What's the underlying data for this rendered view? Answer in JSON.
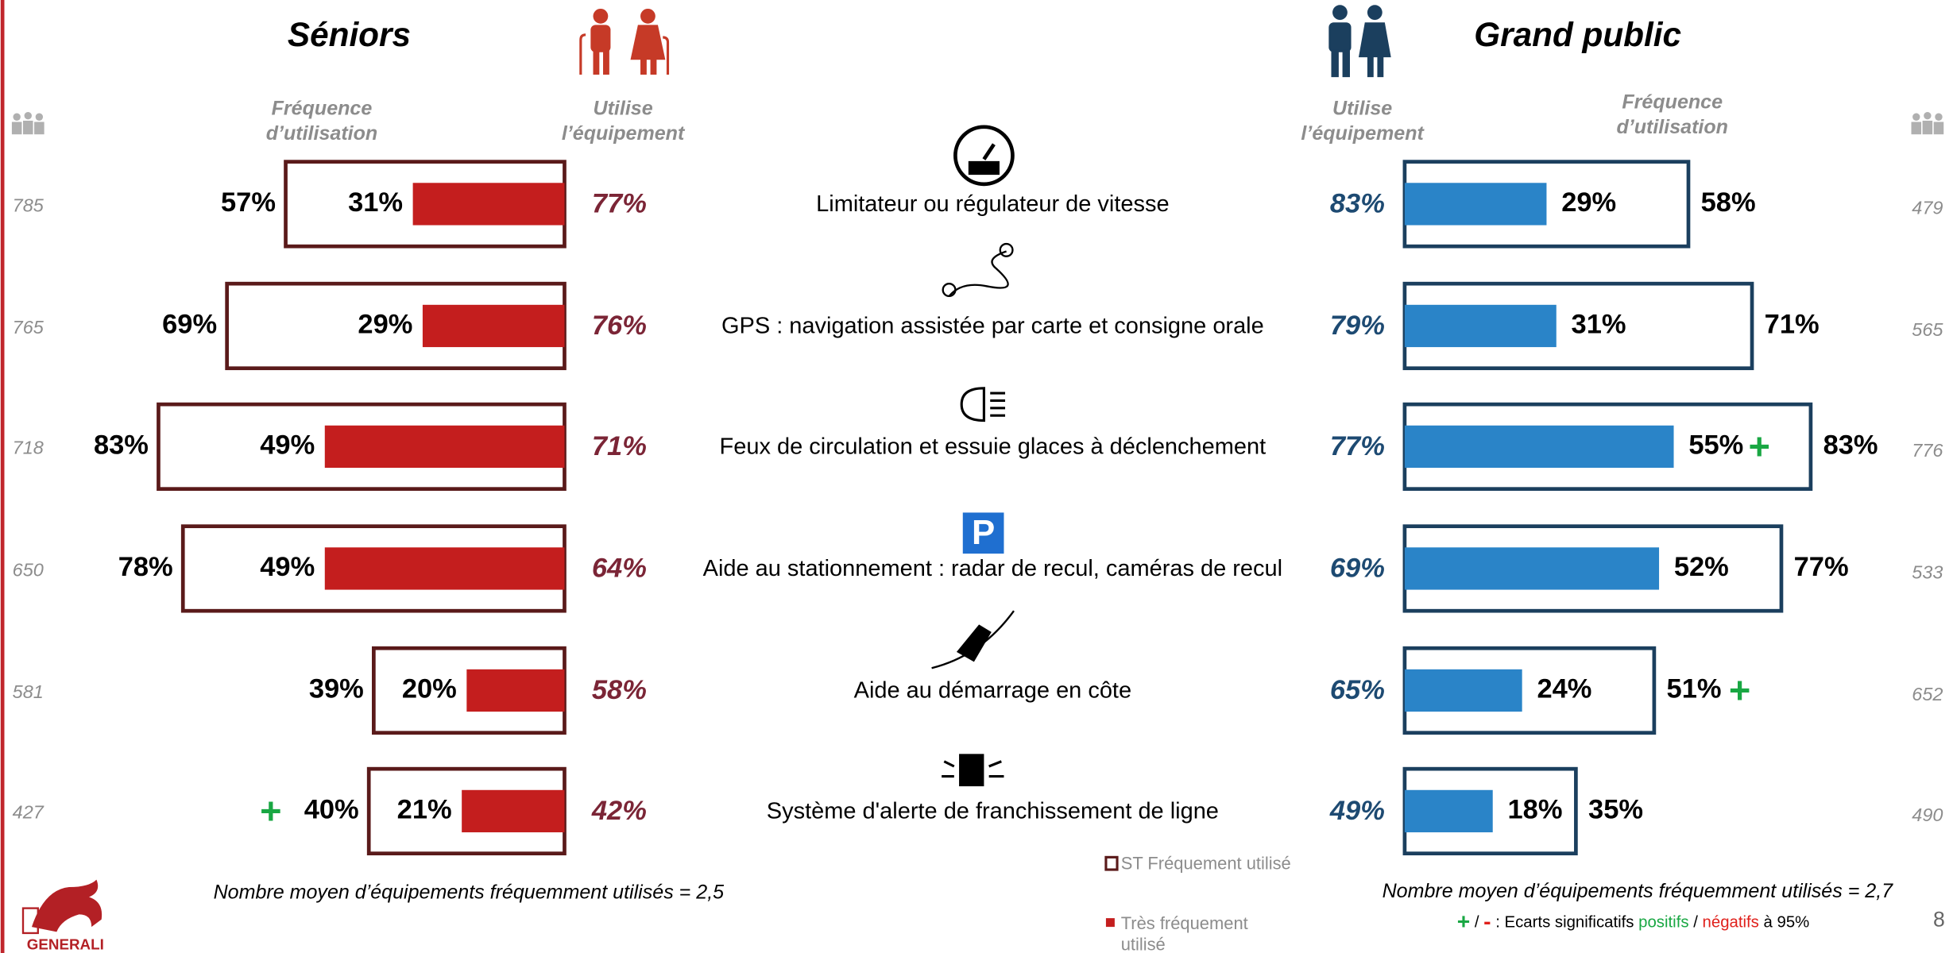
{
  "items": [
    "Limitateur ou régulateur de vitesse",
    "GPS : navigation assistée par carte et consigne orale",
    "Feux de circulation et essuie glaces à  déclenchement",
    "Aide au stationnement : radar de recul, caméras de recul",
    "Aide au démarrage en côte",
    "Système d'alerte de franchissement de ligne"
  ],
  "left": {
    "title": "Séniors",
    "col_freq": [
      "Fréquence",
      "d’utilisation"
    ],
    "col_use": [
      "Utilise",
      "l’équipement"
    ],
    "bases": [
      785,
      765,
      718,
      650,
      581,
      427
    ],
    "st": [
      57,
      69,
      83,
      78,
      39,
      40
    ],
    "st_labels": [
      "57%",
      "69%",
      "83%",
      "78%",
      "39%",
      "40%"
    ],
    "st_sig": [
      null,
      null,
      null,
      null,
      null,
      "+"
    ],
    "tres": [
      31,
      29,
      49,
      49,
      20,
      21
    ],
    "tres_labels": [
      "31%",
      "29%",
      "49%",
      "49%",
      "20%",
      "21%"
    ],
    "tres_sig": [
      null,
      null,
      null,
      null,
      null,
      null
    ],
    "use": [
      77,
      76,
      71,
      64,
      58,
      42
    ],
    "use_labels": [
      "77%",
      "76%",
      "71%",
      "64%",
      "58%",
      "42%"
    ],
    "footnote": "Nombre moyen d’équipements fréquemment utilisés = 2,5"
  },
  "right": {
    "title": "Grand public",
    "col_freq": [
      "Fréquence",
      "d’utilisation"
    ],
    "col_use": [
      "Utilise",
      "l’équipement"
    ],
    "bases": [
      479,
      565,
      776,
      533,
      652,
      490
    ],
    "st": [
      58,
      71,
      83,
      77,
      51,
      35
    ],
    "st_labels": [
      "58%",
      "71%",
      "83%",
      "77%",
      "51%",
      "35%"
    ],
    "st_sig": [
      null,
      null,
      null,
      null,
      "+",
      null
    ],
    "tres": [
      29,
      31,
      55,
      52,
      24,
      18
    ],
    "tres_labels": [
      "29%",
      "31%",
      "55%",
      "52%",
      "24%",
      "18%"
    ],
    "tres_sig": [
      null,
      null,
      "+",
      null,
      null,
      null
    ],
    "use": [
      83,
      79,
      77,
      69,
      65,
      49
    ],
    "use_labels": [
      "83%",
      "79%",
      "77%",
      "69%",
      "65%",
      "49%"
    ],
    "footnote": "Nombre moyen d’équipements fréquemment utilisés = 2,7"
  },
  "legend": {
    "st": "ST Fréquement utilisé",
    "tres": [
      "Très fréquement",
      "utilisé"
    ]
  },
  "note": {
    "plus": "+",
    "sep": "/",
    "minus": "-",
    "text": ": Ecarts significatifs",
    "pos": "positifs",
    "sep2": "/",
    "neg": "négatifs",
    "end": "à 95%"
  },
  "page_number": "8",
  "logo": "GENERALI"
}
